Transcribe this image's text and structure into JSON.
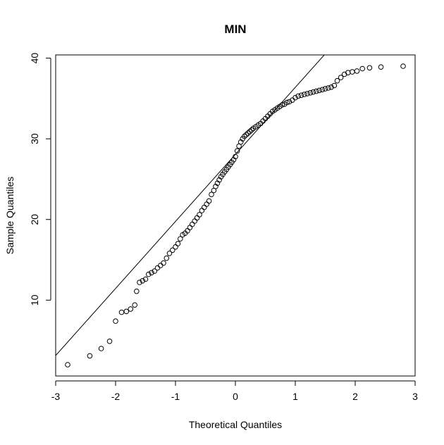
{
  "chart_data": {
    "type": "scatter",
    "title": "MIN",
    "xlabel": "Theoretical Quantiles",
    "ylabel": "Sample Quantiles",
    "xlim": [
      -3.0,
      3.0
    ],
    "ylim": [
      0.6,
      40.4
    ],
    "xticks": [
      -3,
      -2,
      -1,
      0,
      1,
      2,
      3
    ],
    "yticks": [
      10,
      20,
      30,
      40
    ],
    "grid": false,
    "legend": "none",
    "point_color": "#000000",
    "reference_line": {
      "slope": 8.31,
      "intercept": 28.07
    },
    "series": [
      {
        "x": [
          -2.8,
          -2.43,
          -2.24,
          -2.1,
          -2.0,
          -1.9,
          -1.82,
          -1.75,
          -1.68,
          -1.65,
          -1.6,
          -1.55,
          -1.5,
          -1.45,
          -1.4,
          -1.35,
          -1.3,
          -1.25,
          -1.2,
          -1.15,
          -1.1,
          -1.05,
          -1.0,
          -0.96,
          -0.92,
          -0.88,
          -0.84,
          -0.8,
          -0.76,
          -0.72,
          -0.68,
          -0.64,
          -0.6,
          -0.56,
          -0.52,
          -0.48,
          -0.44,
          -0.4,
          -0.36,
          -0.33,
          -0.3,
          -0.27,
          -0.24,
          -0.21,
          -0.18,
          -0.15,
          -0.12,
          -0.09,
          -0.06,
          -0.03,
          0.0,
          0.03,
          0.06,
          0.09,
          0.12,
          0.15,
          0.18,
          0.21,
          0.24,
          0.27,
          0.3,
          0.34,
          0.38,
          0.42,
          0.46,
          0.5,
          0.54,
          0.58,
          0.62,
          0.66,
          0.7,
          0.74,
          0.78,
          0.82,
          0.86,
          0.9,
          0.95,
          1.0,
          1.05,
          1.1,
          1.15,
          1.2,
          1.25,
          1.3,
          1.35,
          1.4,
          1.45,
          1.5,
          1.55,
          1.6,
          1.65,
          1.7,
          1.76,
          1.82,
          1.88,
          1.95,
          2.03,
          2.12,
          2.24,
          2.43,
          2.8
        ],
        "y": [
          2.0,
          3.1,
          4.0,
          4.9,
          7.4,
          8.5,
          8.6,
          8.9,
          9.4,
          11.1,
          12.2,
          12.4,
          12.6,
          13.2,
          13.4,
          13.6,
          14.0,
          14.3,
          14.6,
          15.2,
          15.8,
          16.2,
          16.6,
          17.0,
          17.6,
          18.1,
          18.3,
          18.6,
          19.0,
          19.4,
          19.8,
          20.2,
          20.6,
          21.1,
          21.5,
          21.9,
          22.3,
          23.1,
          23.6,
          24.1,
          24.5,
          24.9,
          25.3,
          25.6,
          25.9,
          26.2,
          26.5,
          26.8,
          27.1,
          27.4,
          27.8,
          28.5,
          29.1,
          29.6,
          30.0,
          30.3,
          30.5,
          30.7,
          30.9,
          31.1,
          31.3,
          31.5,
          31.7,
          31.9,
          32.2,
          32.5,
          32.8,
          33.1,
          33.4,
          33.6,
          33.8,
          34.0,
          34.2,
          34.3,
          34.5,
          34.6,
          34.8,
          35.1,
          35.3,
          35.4,
          35.5,
          35.6,
          35.7,
          35.8,
          35.9,
          36.0,
          36.1,
          36.2,
          36.3,
          36.4,
          36.6,
          37.2,
          37.6,
          38.0,
          38.2,
          38.3,
          38.4,
          38.7,
          38.8,
          38.9,
          39.0
        ]
      }
    ]
  }
}
